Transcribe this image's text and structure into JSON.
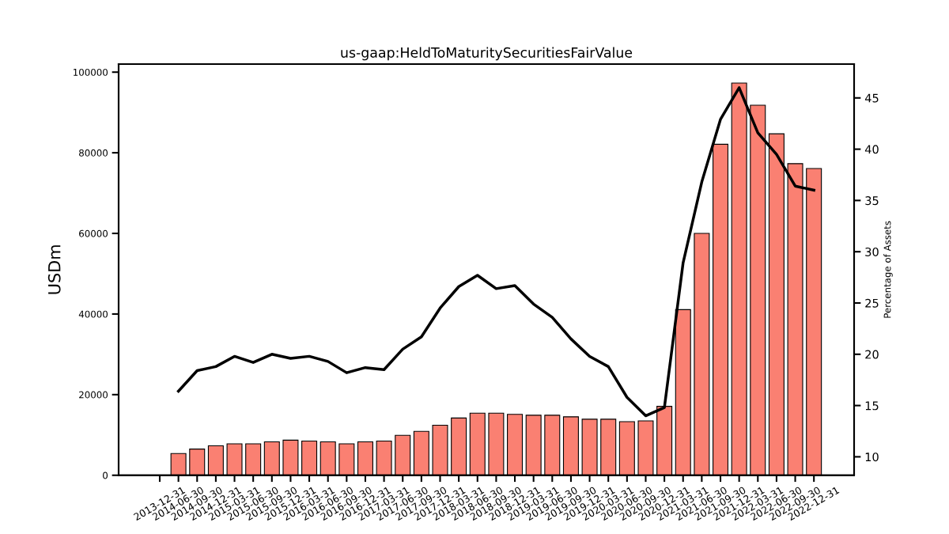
{
  "chart_data": {
    "type": "bar",
    "title": "us-gaap:HeldToMaturitySecuritiesFairValue",
    "ylabel": "USDm",
    "y2label": "Percentage of Assets",
    "categories": [
      "2013-12-31",
      "2014-06-30",
      "2014-09-30",
      "2014-12-31",
      "2015-03-31",
      "2015-06-30",
      "2015-09-30",
      "2015-12-31",
      "2016-03-31",
      "2016-06-30",
      "2016-09-30",
      "2016-12-31",
      "2017-03-31",
      "2017-06-30",
      "2017-09-30",
      "2017-12-31",
      "2018-03-31",
      "2018-06-30",
      "2018-09-30",
      "2018-12-31",
      "2019-03-31",
      "2019-06-30",
      "2019-09-30",
      "2019-12-31",
      "2020-03-31",
      "2020-06-30",
      "2020-09-30",
      "2020-12-31",
      "2021-03-31",
      "2021-06-30",
      "2021-09-30",
      "2021-12-31",
      "2022-03-31",
      "2022-06-30",
      "2022-09-30",
      "2022-12-31"
    ],
    "series": [
      {
        "color": "#fa8072",
        "values": [
          null,
          5400,
          6500,
          7300,
          7800,
          7800,
          8300,
          8700,
          8500,
          8300,
          7800,
          8300,
          8500,
          9900,
          10900,
          12400,
          14200,
          15400,
          15400,
          15100,
          14900,
          14900,
          14500,
          13900,
          13900,
          13300,
          13500,
          17100,
          41100,
          60000,
          82100,
          97300,
          91800,
          84700,
          77300,
          76100
        ]
      },
      {
        "type": "line",
        "axis": "y2",
        "color": "#000000",
        "line_style": "solid",
        "values": [
          null,
          16.4,
          18.4,
          18.8,
          19.8,
          19.2,
          20.0,
          19.6,
          19.8,
          19.3,
          18.2,
          18.7,
          18.5,
          20.5,
          21.7,
          24.5,
          26.6,
          27.7,
          26.4,
          26.7,
          24.9,
          23.6,
          21.5,
          19.8,
          18.8,
          15.8,
          14.0,
          14.8,
          28.9,
          36.8,
          42.9,
          46.0,
          41.6,
          39.5,
          36.4,
          36.0
        ]
      }
    ],
    "ylim": [
      0,
      102000
    ],
    "yticks": [
      0,
      20000,
      40000,
      60000,
      80000,
      100000
    ],
    "y2lim": [
      8.2,
      48.3
    ],
    "y2ticks": [
      10,
      15,
      20,
      25,
      30,
      35,
      40,
      45
    ],
    "grid": false
  }
}
